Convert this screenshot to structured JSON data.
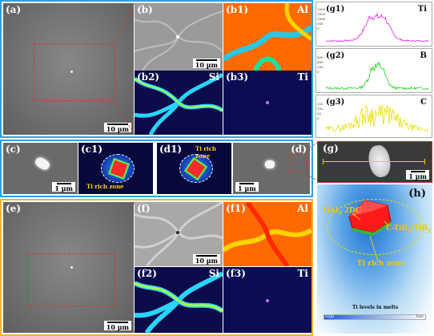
{
  "panels": {
    "a": {
      "label": "(a)",
      "scale": "10 µm"
    },
    "b": {
      "label": "(b)",
      "scale": "10 µm"
    },
    "b1": {
      "label": "(b1)",
      "element": "Al"
    },
    "b2": {
      "label": "(b2)",
      "element": "Si"
    },
    "b3": {
      "label": "(b3)",
      "element": "Ti"
    },
    "c": {
      "label": "(c)",
      "scale": "1 µm"
    },
    "c1": {
      "label": "(c1)",
      "annotation": "Ti rich zone"
    },
    "d1": {
      "label": "(d1)",
      "annotation": "Ti rich zone"
    },
    "d": {
      "label": "(d)",
      "scale": "1 µm"
    },
    "e": {
      "label": "(e)",
      "scale": "10 µm"
    },
    "f": {
      "label": "(f)",
      "scale": "10 µm"
    },
    "f1": {
      "label": "(f1)",
      "element": "Al"
    },
    "f2": {
      "label": "(f2)",
      "element": "Si"
    },
    "f3": {
      "label": "(f3)",
      "element": "Ti"
    },
    "g": {
      "label": "(g)",
      "scale": "1 µm"
    },
    "g1": {
      "label": "(g1)",
      "element": "Ti"
    },
    "g2": {
      "label": "(g2)",
      "element": "B"
    },
    "g3": {
      "label": "(g3)",
      "element": "C"
    },
    "h": {
      "label": "(h)",
      "label_tial": "TiAl",
      "sub_tial": "3",
      "label_tial_suffix": " 2DC",
      "label_tib": "C-TiB",
      "sub_tib": "2",
      "label_tib_mid": "/TiB",
      "sub_tib2": "2",
      "label_tirich": "Ti rich zone",
      "legend_title": "Ti levels in melts",
      "legend_high": "high",
      "legend_low": "low"
    }
  },
  "line_scans": {
    "g1": {
      "ticks": [
        "2000",
        "1500",
        "1000",
        "500",
        "0"
      ]
    },
    "g2": {
      "ticks": [
        "600",
        "400",
        "200",
        "0"
      ]
    },
    "g3": {
      "ticks": [
        "150",
        "100",
        "50",
        "0"
      ]
    }
  },
  "colors": {
    "blue_frame": "#2f9fe0",
    "yellow_frame": "#f2b233",
    "red_box": "#dd3333",
    "ti_trace": "#e020e0",
    "b_trace": "#1fd21f",
    "c_trace": "#e8e000"
  }
}
